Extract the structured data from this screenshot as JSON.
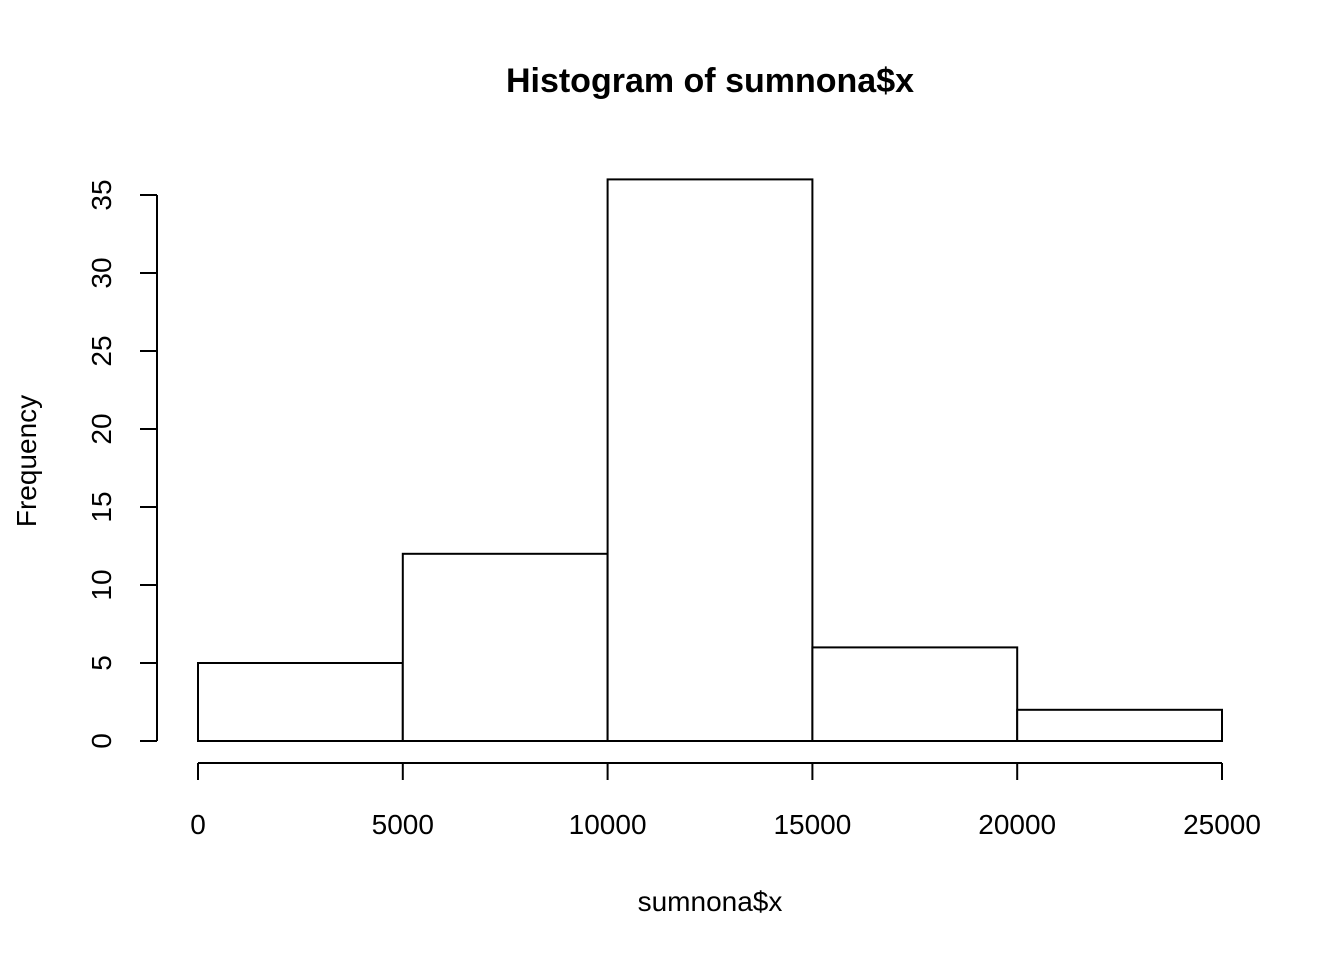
{
  "chart_data": {
    "type": "bar",
    "title": "Histogram of sumnona$x",
    "xlabel": "sumnona$x",
    "ylabel": "Frequency",
    "bins": [
      {
        "from": 0,
        "to": 5000,
        "count": 5
      },
      {
        "from": 5000,
        "to": 10000,
        "count": 12
      },
      {
        "from": 10000,
        "to": 15000,
        "count": 36
      },
      {
        "from": 15000,
        "to": 20000,
        "count": 6
      },
      {
        "from": 20000,
        "to": 25000,
        "count": 2
      }
    ],
    "xlim": [
      0,
      25000
    ],
    "ylim": [
      0,
      35
    ],
    "x_ticks": [
      "0",
      "5000",
      "10000",
      "15000",
      "20000",
      "25000"
    ],
    "y_ticks": [
      "0",
      "5",
      "10",
      "15",
      "20",
      "25",
      "30",
      "35"
    ],
    "grid": false,
    "colors": {
      "bar_fill": "#ffffff",
      "bar_stroke": "#000000",
      "axis": "#000000"
    }
  }
}
